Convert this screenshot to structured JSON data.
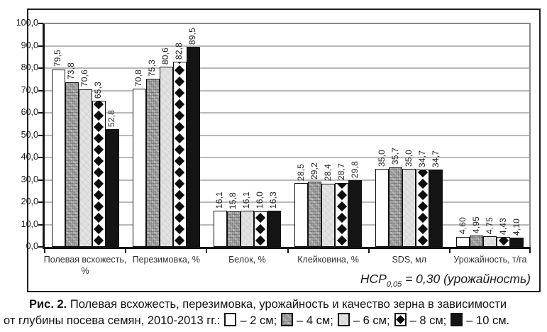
{
  "chart_data": {
    "type": "bar",
    "title": "",
    "categories": [
      "Полевая всхожесть, %",
      "Перезимовка, %",
      "Белок, %",
      "Клейковина, %",
      "SDS, мл",
      "Урожайность, т/га"
    ],
    "series": [
      {
        "name": "2 см",
        "pattern": "white",
        "values": [
          79.5,
          70.8,
          16.1,
          28.5,
          35.0,
          4.6
        ],
        "labels": [
          "79,5",
          "70,8",
          "16,1",
          "28,5",
          "35,0",
          "4,60"
        ]
      },
      {
        "name": "4 см",
        "pattern": "mottled",
        "values": [
          73.8,
          75.3,
          15.8,
          29.2,
          35.7,
          4.95
        ],
        "labels": [
          "73,8",
          "75,3",
          "15,8",
          "29,2",
          "35,7",
          "4,95"
        ]
      },
      {
        "name": "6 см",
        "pattern": "light",
        "values": [
          70.6,
          80.6,
          16.1,
          28.4,
          35.0,
          4.75
        ],
        "labels": [
          "70,6",
          "80,6",
          "16,1",
          "28,4",
          "35,0",
          "4,75"
        ]
      },
      {
        "name": "8 см",
        "pattern": "diamond",
        "values": [
          65.3,
          82.8,
          16.0,
          28.7,
          34.7,
          4.43
        ],
        "labels": [
          "65,3",
          "82,8",
          "16,0",
          "28,7",
          "34,7",
          "4,43"
        ]
      },
      {
        "name": "10 см",
        "pattern": "black",
        "values": [
          52.8,
          89.5,
          16.3,
          29.8,
          34.7,
          4.1
        ],
        "labels": [
          "52,8",
          "89,5",
          "16,3",
          "29,8",
          "34,7",
          "4,10"
        ]
      }
    ],
    "ylim": [
      0,
      100
    ],
    "ytick_step": 10,
    "ytick_labels": [
      "0,0",
      "10,0",
      "20,0",
      "30,0",
      "40,0",
      "50,0",
      "60,0",
      "70,0",
      "80,0",
      "90,0",
      "100,0"
    ],
    "grid": true,
    "legend_position": "caption-below"
  },
  "note": {
    "prefix": "НСР",
    "sub": "0,05",
    "rest": " = 0,30 (урожайность)"
  },
  "caption": {
    "label": "Рис. 2.",
    "text_line1": "Полевая всхожесть, перезимовка, урожайность и качество зерна в зависимости",
    "text_line2": "от глубины посева семян, 2010-2013 гг.:",
    "legend": [
      {
        "pattern": "white",
        "swatch_name": "white-square-swatch",
        "label": "– 2 см;"
      },
      {
        "pattern": "mottled",
        "swatch_name": "gray-mottled-swatch",
        "label": "– 4 см;"
      },
      {
        "pattern": "light",
        "swatch_name": "light-gray-swatch",
        "label": "– 6 см;"
      },
      {
        "pattern": "diamond",
        "swatch_name": "black-diamond-swatch",
        "label": "– 8 см;"
      },
      {
        "pattern": "black",
        "swatch_name": "black-square-swatch",
        "label": "– 10 см."
      }
    ]
  }
}
